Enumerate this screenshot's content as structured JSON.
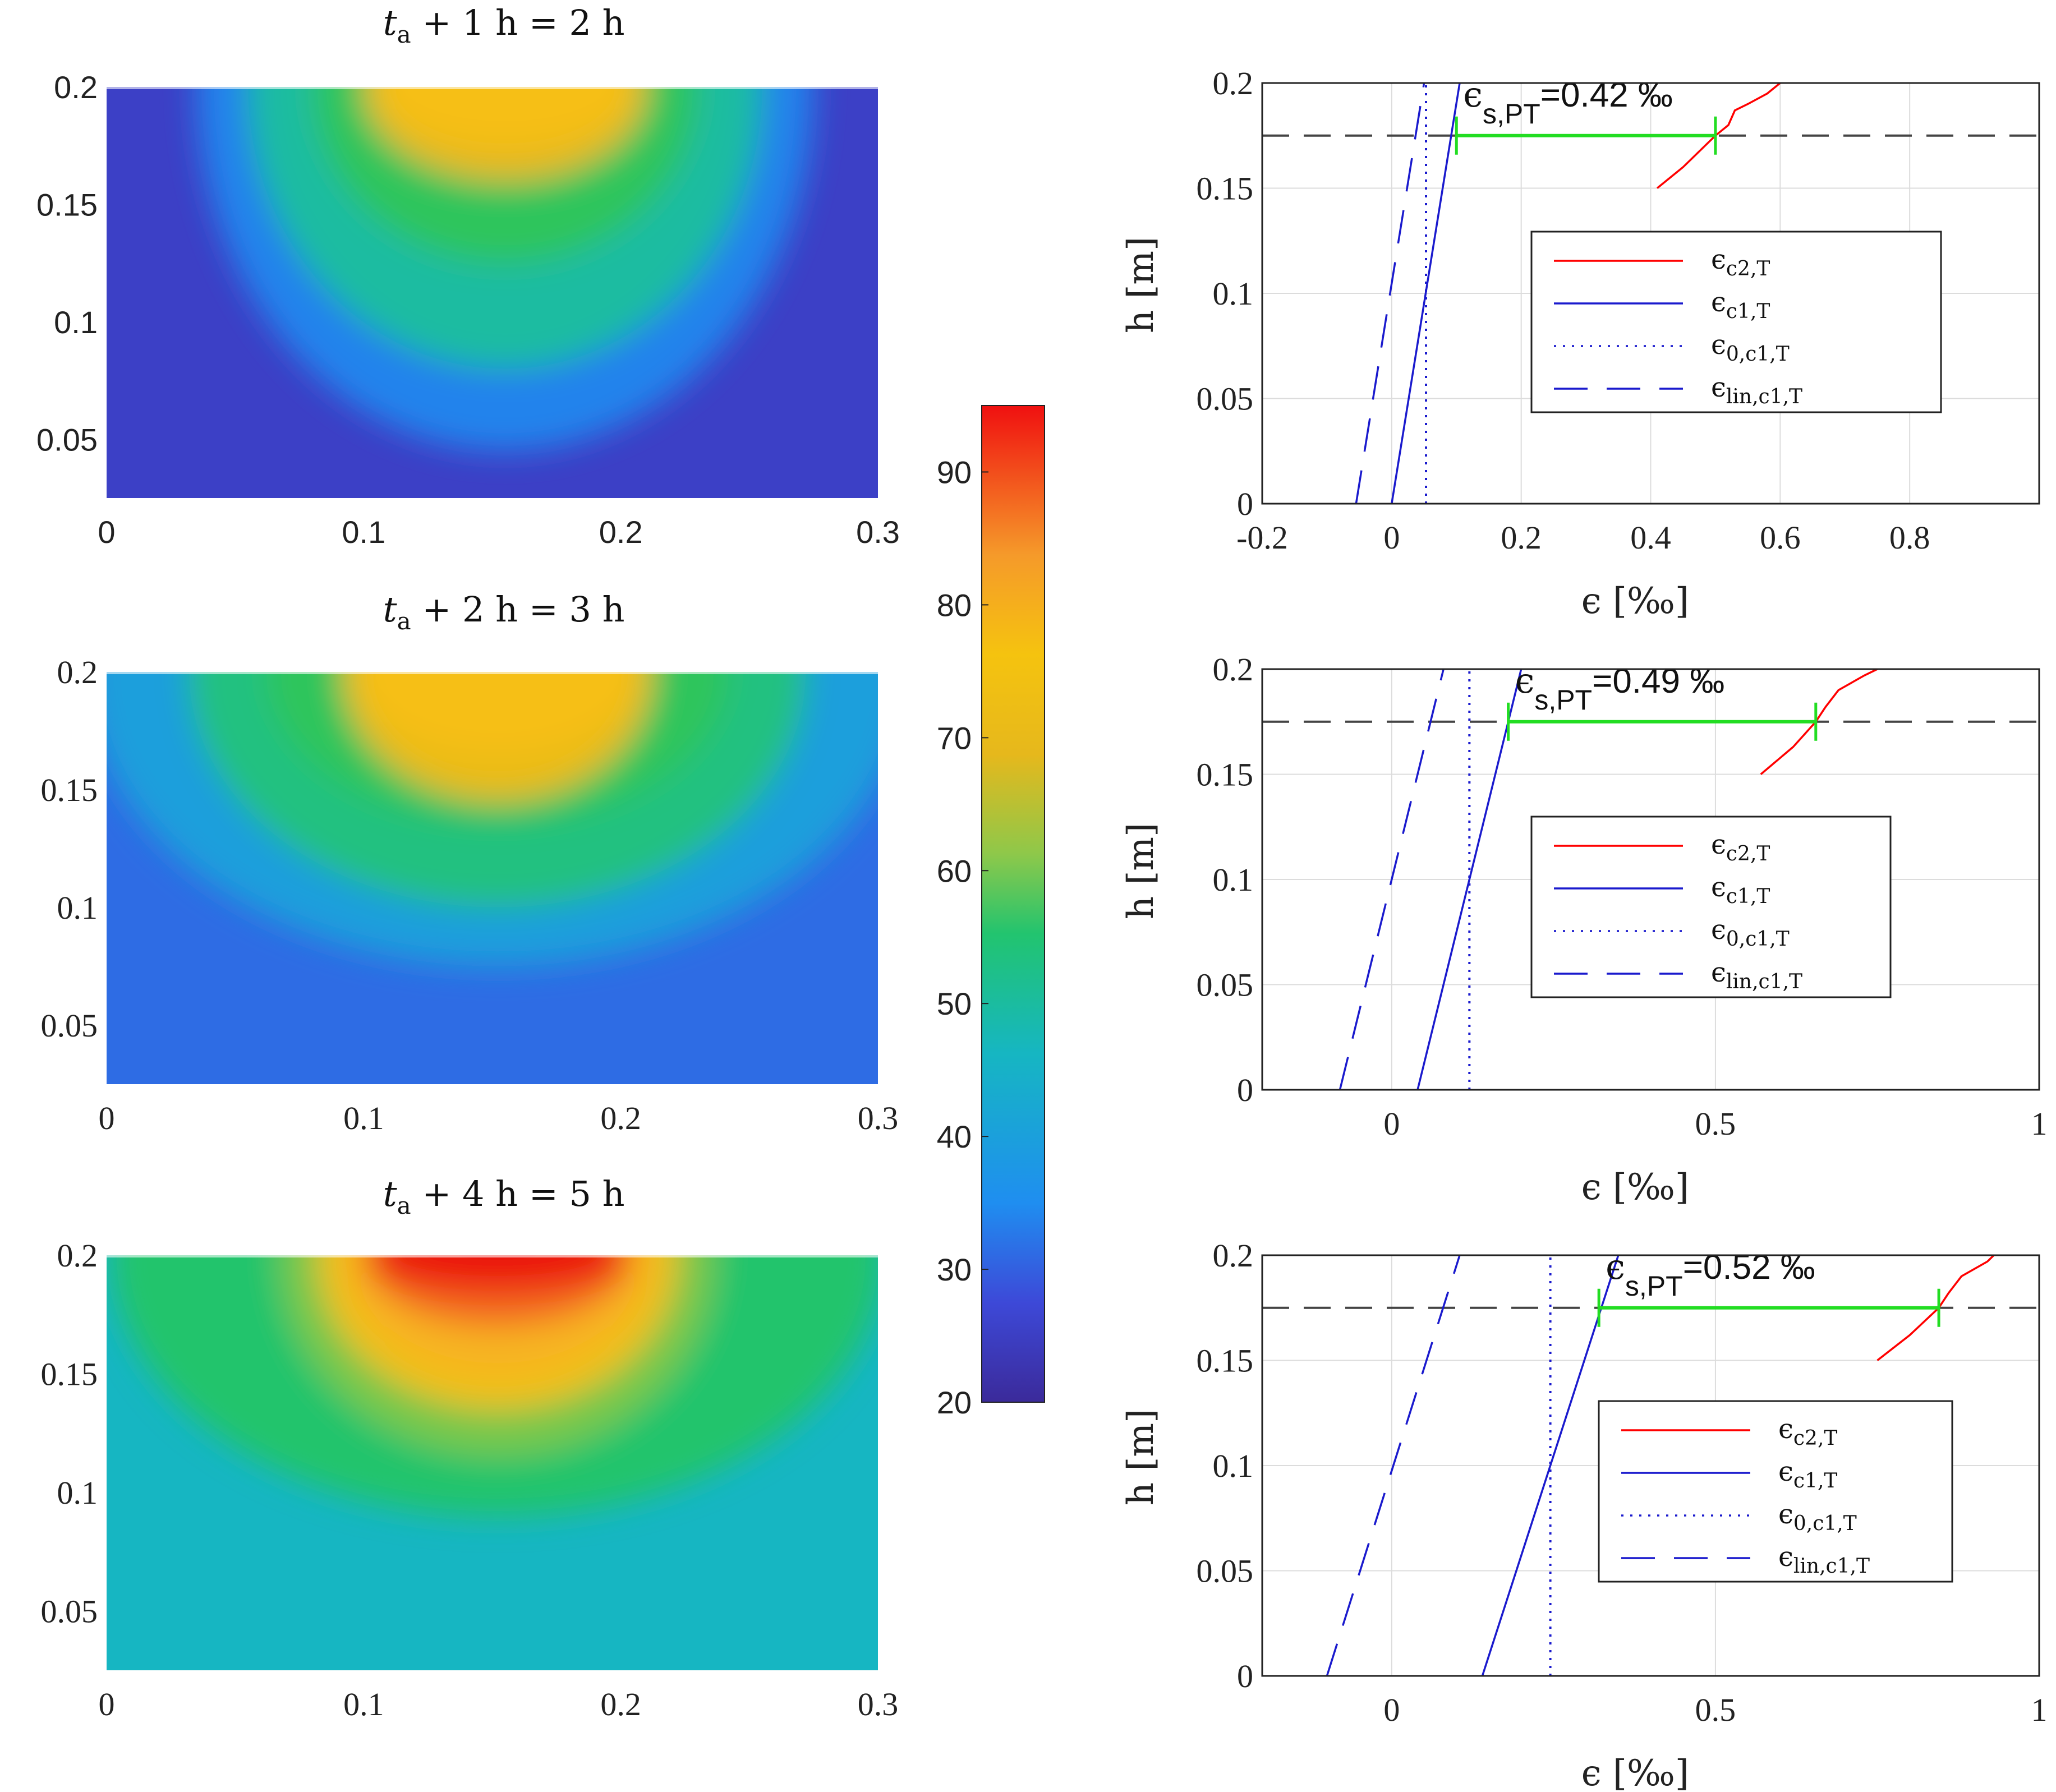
{
  "chart_data": [
    {
      "type": "heatmap",
      "title": "t_a + 1 h = 2 h",
      "title_parts": {
        "t": "t",
        "sub": "a",
        "rest": " + 1 h = 2 h"
      },
      "xlim": [
        0,
        0.3
      ],
      "ylim": [
        0.025,
        0.2
      ],
      "xticks": [
        "0",
        "0.1",
        "0.2",
        "0.3"
      ],
      "xtick_values": [
        0,
        0.1,
        0.2,
        0.3
      ],
      "yticks": [
        "0.05",
        "0.1",
        "0.15",
        "0.2"
      ],
      "ytick_values": [
        0.05,
        0.1,
        0.15,
        0.2
      ],
      "background_value": 25,
      "hot_center_x": 0.155,
      "layers": [
        {
          "value": 32,
          "rx": 0.12,
          "depth": 0.155
        },
        {
          "value": 42,
          "rx": 0.1,
          "depth": 0.12
        },
        {
          "value": 52,
          "rx": 0.075,
          "depth": 0.075
        },
        {
          "value": 65,
          "rx": 0.055,
          "depth": 0.04
        },
        {
          "value": 74,
          "rx": 0.05,
          "depth": 0.025
        }
      ]
    },
    {
      "type": "heatmap",
      "title": "t_a + 2 h = 3 h",
      "title_parts": {
        "t": "t",
        "sub": "a",
        "rest": " + 2 h = 3 h"
      },
      "xlim": [
        0,
        0.3
      ],
      "ylim": [
        0.025,
        0.2
      ],
      "xticks": [
        "0",
        "0.1",
        "0.2",
        "0.3"
      ],
      "xtick_values": [
        0,
        0.1,
        0.2,
        0.3
      ],
      "yticks": [
        "0.05",
        "0.1",
        "0.15",
        "0.2"
      ],
      "ytick_values": [
        0.05,
        0.1,
        0.15,
        0.2
      ],
      "background_value": 30,
      "hot_center_x": 0.152,
      "layers": [
        {
          "value": 36,
          "rx": 0.16,
          "depth": 0.125
        },
        {
          "value": 44,
          "rx": 0.12,
          "depth": 0.1
        },
        {
          "value": 52,
          "rx": 0.09,
          "depth": 0.065
        },
        {
          "value": 66,
          "rx": 0.06,
          "depth": 0.055
        },
        {
          "value": 74,
          "rx": 0.055,
          "depth": 0.035
        }
      ]
    },
    {
      "type": "heatmap",
      "title": "t_a + 4 h = 5 h",
      "title_parts": {
        "t": "t",
        "sub": "a",
        "rest": " + 4 h = 5 h"
      },
      "xlim": [
        0,
        0.3
      ],
      "ylim": [
        0.025,
        0.2
      ],
      "xticks": [
        "0",
        "0.1",
        "0.2",
        "0.3"
      ],
      "xtick_values": [
        0,
        0.1,
        0.2,
        0.3
      ],
      "yticks": [
        "0.05",
        "0.1",
        "0.15",
        "0.2"
      ],
      "ytick_values": [
        0.05,
        0.1,
        0.15,
        0.2
      ],
      "background_value": 40,
      "hot_center_x": 0.152,
      "layers": [
        {
          "value": 46,
          "rx": 0.15,
          "depth": 0.11
        },
        {
          "value": 56,
          "rx": 0.085,
          "depth": 0.085
        },
        {
          "value": 70,
          "rx": 0.07,
          "depth": 0.065
        },
        {
          "value": 80,
          "rx": 0.06,
          "depth": 0.05
        },
        {
          "value": 88,
          "rx": 0.052,
          "depth": 0.03
        },
        {
          "value": 94,
          "rx": 0.05,
          "depth": 0.015
        }
      ]
    },
    {
      "type": "colorbar",
      "range": [
        20,
        95
      ],
      "ticks": [
        "20",
        "30",
        "40",
        "50",
        "60",
        "70",
        "80",
        "90"
      ],
      "tick_values": [
        20,
        30,
        40,
        50,
        60,
        70,
        80,
        90
      ]
    },
    {
      "type": "line",
      "xlabel": "ϵ [‰]",
      "ylabel": "h [m]",
      "xlim": [
        -0.2,
        1.0
      ],
      "ylim": [
        0,
        0.2
      ],
      "xticks": [
        "-0.2",
        "0",
        "0.2",
        "0.4",
        "0.6",
        "0.8"
      ],
      "xtick_values": [
        -0.2,
        0,
        0.2,
        0.4,
        0.6,
        0.8
      ],
      "yticks": [
        "0",
        "0.05",
        "0.1",
        "0.15",
        "0.2"
      ],
      "ytick_values": [
        0,
        0.05,
        0.1,
        0.15,
        0.2
      ],
      "grid": true,
      "annotation": {
        "label_main": "ϵ",
        "label_sub": "s,PT",
        "value_text": "=0.42 ‰",
        "x_from": 0.1,
        "x_to": 0.5,
        "y": 0.175
      },
      "hline_y": 0.175,
      "series": [
        {
          "name": "ϵc2,T",
          "legend_main": "ϵ",
          "legend_sub": "c2,T",
          "color": "#ff0000",
          "style": "solid",
          "x": [
            0.41,
            0.45,
            0.5,
            0.52,
            0.53,
            0.55,
            0.58,
            0.6
          ],
          "y": [
            0.15,
            0.16,
            0.175,
            0.18,
            0.187,
            0.19,
            0.195,
            0.2
          ]
        },
        {
          "name": "ϵc1,T",
          "legend_main": "ϵ",
          "legend_sub": "c1,T",
          "color": "#1a1acd",
          "style": "solid",
          "x": [
            0.0,
            0.105
          ],
          "y": [
            0.0,
            0.2
          ]
        },
        {
          "name": "ϵ0,c1,T",
          "legend_main": "ϵ",
          "legend_sub": "0,c1,T",
          "color": "#1a1acd",
          "style": "dotted",
          "x": [
            0.053,
            0.053
          ],
          "y": [
            0.0,
            0.2
          ]
        },
        {
          "name": "ϵlin,c1,T",
          "legend_main": "ϵ",
          "legend_sub": "lin,c1,T",
          "color": "#1a1acd",
          "style": "dashed",
          "x": [
            -0.055,
            0.05
          ],
          "y": [
            0.0,
            0.2
          ]
        }
      ],
      "legend_position": "center-right"
    },
    {
      "type": "line",
      "xlabel": "ϵ [‰]",
      "ylabel": "h [m]",
      "xlim": [
        -0.2,
        1.0
      ],
      "ylim": [
        0,
        0.2
      ],
      "xticks": [
        "0",
        "0.5",
        "1"
      ],
      "xtick_values": [
        0,
        0.5,
        1.0
      ],
      "yticks": [
        "0",
        "0.05",
        "0.1",
        "0.15",
        "0.2"
      ],
      "ytick_values": [
        0,
        0.05,
        0.1,
        0.15,
        0.2
      ],
      "grid": true,
      "annotation": {
        "label_main": "ϵ",
        "label_sub": "s,PT",
        "value_text": "=0.49 ‰",
        "x_from": 0.18,
        "x_to": 0.655,
        "y": 0.175
      },
      "hline_y": 0.175,
      "series": [
        {
          "name": "ϵc2,T",
          "legend_main": "ϵ",
          "legend_sub": "c2,T",
          "color": "#ff0000",
          "style": "solid",
          "x": [
            0.57,
            0.62,
            0.655,
            0.67,
            0.69,
            0.73,
            0.75
          ],
          "y": [
            0.15,
            0.163,
            0.175,
            0.182,
            0.19,
            0.197,
            0.2
          ]
        },
        {
          "name": "ϵc1,T",
          "legend_main": "ϵ",
          "legend_sub": "c1,T",
          "color": "#1a1acd",
          "style": "solid",
          "x": [
            0.04,
            0.2
          ],
          "y": [
            0.0,
            0.2
          ]
        },
        {
          "name": "ϵ0,c1,T",
          "legend_main": "ϵ",
          "legend_sub": "0,c1,T",
          "color": "#1a1acd",
          "style": "dotted",
          "x": [
            0.12,
            0.12
          ],
          "y": [
            0.0,
            0.2
          ]
        },
        {
          "name": "ϵlin,c1,T",
          "legend_main": "ϵ",
          "legend_sub": "lin,c1,T",
          "color": "#1a1acd",
          "style": "dashed",
          "x": [
            -0.08,
            0.08
          ],
          "y": [
            0.0,
            0.2
          ]
        }
      ],
      "legend_position": "center-right"
    },
    {
      "type": "line",
      "xlabel": "ϵ [‰]",
      "ylabel": "h [m]",
      "xlim": [
        -0.2,
        1.0
      ],
      "ylim": [
        0,
        0.2
      ],
      "xticks": [
        "0",
        "0.5",
        "1"
      ],
      "xtick_values": [
        0,
        0.5,
        1.0
      ],
      "yticks": [
        "0",
        "0.05",
        "0.1",
        "0.15",
        "0.2"
      ],
      "ytick_values": [
        0,
        0.05,
        0.1,
        0.15,
        0.2
      ],
      "grid": true,
      "annotation": {
        "label_main": "ϵ",
        "label_sub": "s,PT",
        "value_text": "=0.52 ‰",
        "x_from": 0.32,
        "x_to": 0.845,
        "y": 0.175
      },
      "hline_y": 0.175,
      "series": [
        {
          "name": "ϵc2,T",
          "legend_main": "ϵ",
          "legend_sub": "c2,T",
          "color": "#ff0000",
          "style": "solid",
          "x": [
            0.75,
            0.8,
            0.845,
            0.86,
            0.88,
            0.92,
            0.93
          ],
          "y": [
            0.15,
            0.162,
            0.175,
            0.182,
            0.19,
            0.197,
            0.2
          ]
        },
        {
          "name": "ϵc1,T",
          "legend_main": "ϵ",
          "legend_sub": "c1,T",
          "color": "#1a1acd",
          "style": "solid",
          "x": [
            0.14,
            0.35
          ],
          "y": [
            0.0,
            0.2
          ]
        },
        {
          "name": "ϵ0,c1,T",
          "legend_main": "ϵ",
          "legend_sub": "0,c1,T",
          "color": "#1a1acd",
          "style": "dotted",
          "x": [
            0.245,
            0.245
          ],
          "y": [
            0.0,
            0.2
          ]
        },
        {
          "name": "ϵlin,c1,T",
          "legend_main": "ϵ",
          "legend_sub": "lin,c1,T",
          "color": "#1a1acd",
          "style": "dashed",
          "x": [
            -0.1,
            0.105
          ],
          "y": [
            0.0,
            0.2
          ]
        }
      ],
      "legend_position": "center-right"
    }
  ]
}
